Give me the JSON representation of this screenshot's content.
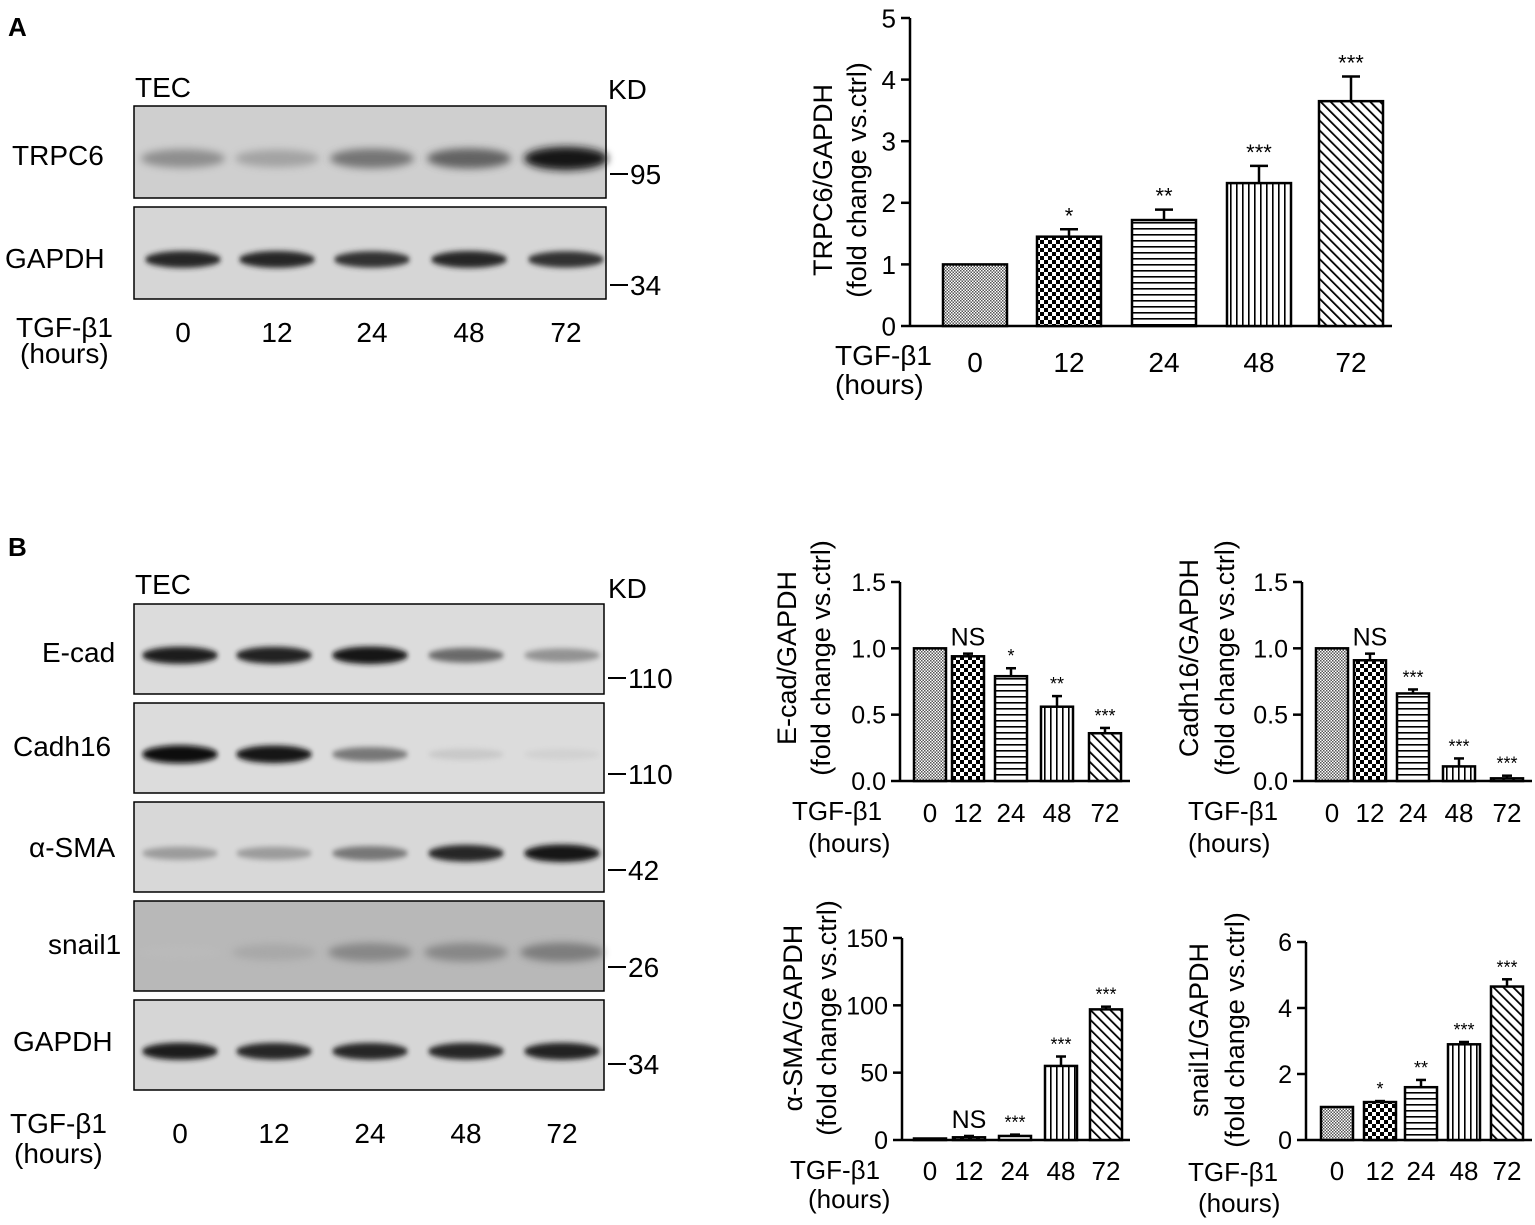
{
  "figure": {
    "panels": [
      {
        "letter": "A",
        "cell_label": "TEC",
        "kd_label": "KD",
        "rows": [
          {
            "name": "TRPC6",
            "marker": "95",
            "intensities": [
              0.45,
              0.35,
              0.55,
              0.62,
              0.95
            ],
            "blot_bg": "#cfcfcf",
            "band_type": "diffuse"
          },
          {
            "name": "GAPDH",
            "marker": "34",
            "intensities": [
              0.85,
              0.85,
              0.8,
              0.85,
              0.8
            ],
            "blot_bg": "#d6d6d6",
            "band_type": "sharp"
          }
        ],
        "treatment_label": "TGF-β1",
        "treatment_unit": "(hours)",
        "lanes": [
          "0",
          "12",
          "24",
          "48",
          "72"
        ]
      },
      {
        "letter": "B",
        "cell_label": "TEC",
        "kd_label": "KD",
        "rows": [
          {
            "name": "E-cad",
            "marker": "110",
            "intensities": [
              0.9,
              0.88,
              0.95,
              0.6,
              0.45
            ],
            "blot_bg": "#dcdcdc",
            "band_type": "sharp"
          },
          {
            "name": "Cadh16",
            "marker": "110",
            "intensities": [
              1.0,
              0.95,
              0.55,
              0.15,
              0.07
            ],
            "blot_bg": "#dcdcdc",
            "band_type": "sharp"
          },
          {
            "name": "α-SMA",
            "marker": "42",
            "intensities": [
              0.4,
              0.4,
              0.55,
              0.85,
              0.95
            ],
            "blot_bg": "#d8d8d8",
            "band_type": "sharp"
          },
          {
            "name": "snail1",
            "marker": "26",
            "intensities": [
              0.05,
              0.25,
              0.45,
              0.45,
              0.5
            ],
            "blot_bg": "#b8b8b8",
            "band_type": "diffuse"
          },
          {
            "name": "GAPDH",
            "marker": "34",
            "intensities": [
              0.9,
              0.85,
              0.85,
              0.85,
              0.88
            ],
            "blot_bg": "#d6d6d6",
            "band_type": "sharp"
          }
        ],
        "treatment_label": "TGF-β1",
        "treatment_unit": "(hours)",
        "lanes": [
          "0",
          "12",
          "24",
          "48",
          "72"
        ]
      }
    ]
  },
  "chart_data": [
    {
      "type": "bar",
      "ylabel_line1": "TRPC6/GAPDH",
      "ylabel_line2": "(fold change vs.ctrl)",
      "xlabel": "TGF-β1",
      "xunit": "(hours)",
      "categories": [
        "0",
        "12",
        "24",
        "48",
        "72"
      ],
      "values": [
        1.0,
        1.45,
        1.72,
        2.32,
        3.65
      ],
      "errors": [
        0,
        0.12,
        0.17,
        0.28,
        0.4
      ],
      "significance": [
        "",
        "*",
        "**",
        "***",
        "***"
      ],
      "ylim": [
        0,
        5
      ],
      "yticks": [
        "0",
        "1",
        "2",
        "3",
        "4",
        "5"
      ],
      "patterns": [
        "fine",
        "checker",
        "horiz",
        "vert",
        "diag"
      ]
    },
    {
      "type": "bar",
      "ylabel_line1": "E-cad/GAPDH",
      "ylabel_line2": "(fold change vs.ctrl)",
      "xlabel": "TGF-β1",
      "xunit": "(hours)",
      "categories": [
        "0",
        "12",
        "24",
        "48",
        "72"
      ],
      "values": [
        1.0,
        0.94,
        0.79,
        0.56,
        0.36
      ],
      "errors": [
        0,
        0.02,
        0.06,
        0.08,
        0.04
      ],
      "significance": [
        "",
        "NS",
        "*",
        "**",
        "***"
      ],
      "ylim": [
        0,
        1.5
      ],
      "yticks": [
        "0.0",
        "0.5",
        "1.0",
        "1.5"
      ],
      "patterns": [
        "fine",
        "checker",
        "horiz",
        "vert",
        "diag"
      ]
    },
    {
      "type": "bar",
      "ylabel_line1": "Cadh16/GAPDH",
      "ylabel_line2": "(fold change vs.ctrl)",
      "xlabel": "TGF-β1",
      "xunit": "(hours)",
      "categories": [
        "0",
        "12",
        "24",
        "48",
        "72"
      ],
      "values": [
        1.0,
        0.91,
        0.66,
        0.11,
        0.02
      ],
      "errors": [
        0,
        0.05,
        0.03,
        0.06,
        0.02
      ],
      "significance": [
        "",
        "NS",
        "***",
        "***",
        "***"
      ],
      "ylim": [
        0,
        1.5
      ],
      "yticks": [
        "0.0",
        "0.5",
        "1.0",
        "1.5"
      ],
      "patterns": [
        "fine",
        "checker",
        "horiz",
        "vert",
        "diag"
      ]
    },
    {
      "type": "bar",
      "ylabel_line1": "α-SMA/GAPDH",
      "ylabel_line2": "(fold change vs.ctrl)",
      "xlabel": "TGF-β1",
      "xunit": "(hours)",
      "categories": [
        "0",
        "12",
        "24",
        "48",
        "72"
      ],
      "values": [
        1,
        2,
        3,
        55,
        97
      ],
      "errors": [
        0,
        1,
        1,
        7,
        2
      ],
      "significance": [
        "",
        "NS",
        "***",
        "***",
        "***"
      ],
      "ylim": [
        0,
        150
      ],
      "yticks": [
        "0",
        "50",
        "100",
        "150"
      ],
      "patterns": [
        "fine",
        "checker",
        "horiz",
        "vert",
        "diag"
      ]
    },
    {
      "type": "bar",
      "ylabel_line1": "snail1/GAPDH",
      "ylabel_line2": "(fold change vs.ctrl)",
      "xlabel": "TGF-β1",
      "xunit": "(hours)",
      "categories": [
        "0",
        "12",
        "24",
        "48",
        "72"
      ],
      "values": [
        1.0,
        1.15,
        1.6,
        2.9,
        4.65
      ],
      "errors": [
        0,
        0.03,
        0.22,
        0.07,
        0.22
      ],
      "significance": [
        "",
        "*",
        "**",
        "***",
        "***"
      ],
      "ylim": [
        0,
        6
      ],
      "yticks": [
        "0",
        "2",
        "4",
        "6"
      ],
      "patterns": [
        "fine",
        "checker",
        "horiz",
        "vert",
        "diag"
      ]
    }
  ]
}
